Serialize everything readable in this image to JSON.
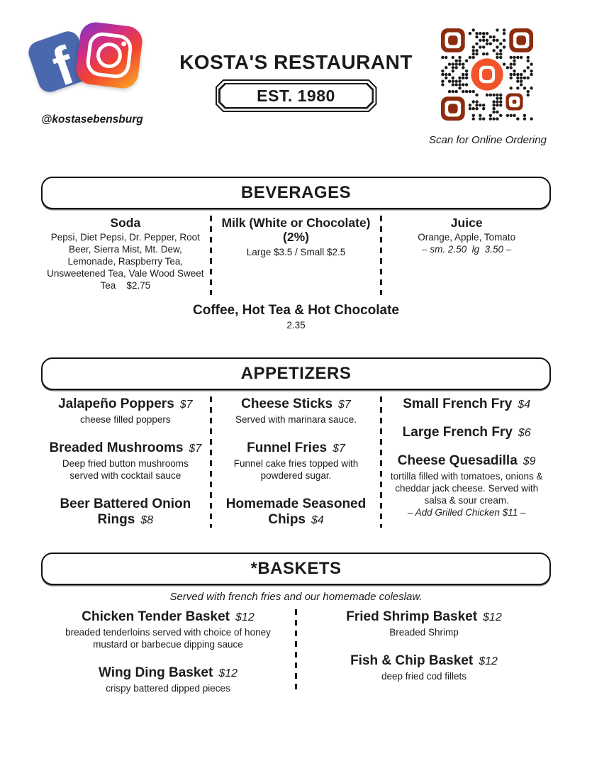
{
  "page": {
    "title": "KOSTA'S RESTAURANT",
    "established": "EST. 1980",
    "social_handle": "@kostasebensburg",
    "qr_caption": "Scan for Online Ordering"
  },
  "colors": {
    "text": "#1b1b1b",
    "facebook_blue": "#4a68ad",
    "instagram_purple": "#7c35c9",
    "instagram_pink": "#d62e7f",
    "instagram_red": "#f1442e",
    "instagram_orange": "#f9a326",
    "qr_finder": "#8c2c0e",
    "qr_module": "#1c1c1c",
    "toast_orange": "#f1532a"
  },
  "beverages": {
    "title": "BEVERAGES",
    "columns": [
      {
        "name": "Soda",
        "desc": "Pepsi, Diet Pepsi, Dr. Pepper, Root Beer, Sierra Mist, Mt. Dew, Lemonade, Raspberry Tea, Unsweetened Tea, Vale Wood Sweet Tea    $2.75"
      },
      {
        "name": "Milk (White or Chocolate) (2%)",
        "desc": "Large $3.5 / Small $2.5"
      },
      {
        "name": "Juice",
        "desc": "Orange, Apple, Tomato",
        "note": "– sm. 2.50  lg  3.50 –"
      }
    ],
    "footer": {
      "name": "Coffee, Hot Tea & Hot Chocolate",
      "price": "2.35"
    }
  },
  "appetizers": {
    "title": "APPETIZERS",
    "columns": [
      {
        "items": [
          {
            "name": "Jalapeño Poppers",
            "price": "$7",
            "desc": "cheese filled poppers"
          },
          {
            "name": "Breaded Mushrooms",
            "price": "$7",
            "desc": "Deep fried button mushrooms served with cocktail sauce"
          },
          {
            "name": "Beer Battered Onion Rings",
            "price": "$8"
          }
        ]
      },
      {
        "items": [
          {
            "name": "Cheese Sticks",
            "price": "$7",
            "desc": "Served with marinara sauce."
          },
          {
            "name": "Funnel Fries",
            "price": "$7",
            "desc": "Funnel cake fries topped with powdered sugar."
          },
          {
            "name": "Homemade Seasoned Chips",
            "price": "$4"
          }
        ]
      },
      {
        "items": [
          {
            "name": "Small French Fry",
            "price": "$4"
          },
          {
            "name": "Large French Fry",
            "price": "$6"
          },
          {
            "name": "Cheese Quesadilla",
            "price": "$9",
            "desc": "tortilla filled with tomatoes, onions & cheddar jack cheese. Served with salsa & sour cream.",
            "note": "– Add Grilled Chicken $11 –"
          }
        ]
      }
    ]
  },
  "baskets": {
    "title": "*BASKETS",
    "subtitle": "Served with french fries and our homemade coleslaw.",
    "columns": [
      {
        "items": [
          {
            "name": "Chicken Tender Basket",
            "price": "$12",
            "desc": "breaded tenderloins served with choice of honey mustard or barbecue dipping sauce"
          },
          {
            "name": "Wing Ding Basket",
            "price": "$12",
            "desc": "crispy battered dipped pieces"
          }
        ]
      },
      {
        "items": [
          {
            "name": "Fried Shrimp Basket",
            "price": "$12",
            "desc": "Breaded Shrimp"
          },
          {
            "name": "Fish & Chip Basket",
            "price": "$12",
            "desc": "deep fried cod fillets"
          }
        ]
      }
    ]
  }
}
